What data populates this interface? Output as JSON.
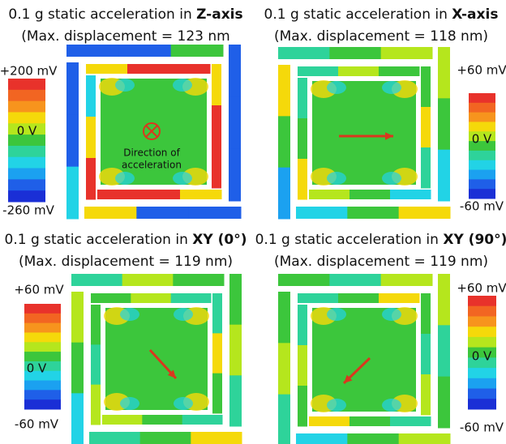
{
  "panels": [
    {
      "title": "0.1 g static acceleration in ",
      "title_bold": "Z-axis",
      "subtitle": "(Max. displacement = 123 nm",
      "scale_top": "+200 mV",
      "scale_mid": "0 V",
      "scale_bottom": "-260 mV",
      "annotation": [
        "Direction of",
        "acceleration"
      ]
    },
    {
      "title": "0.1 g static acceleration in ",
      "title_bold": "X-axis",
      "subtitle": "(Max. displacement = 118 nm)",
      "scale_top": "+60 mV",
      "scale_mid": "0 V",
      "scale_bottom": "-60 mV"
    },
    {
      "title": "0.1 g static acceleration in ",
      "title_bold": "XY (0°)",
      "subtitle": "(Max. displacement = 119 nm)",
      "scale_top": "+60 mV",
      "scale_mid": "0 V",
      "scale_bottom": "-60 mV"
    },
    {
      "title": "0.1 g static acceleration in ",
      "title_bold": "XY (90°)",
      "subtitle": "(Max. displacement = 119 nm)",
      "scale_top": "+60 mV",
      "scale_mid": "0 V",
      "scale_bottom": "-60 mV"
    }
  ]
}
